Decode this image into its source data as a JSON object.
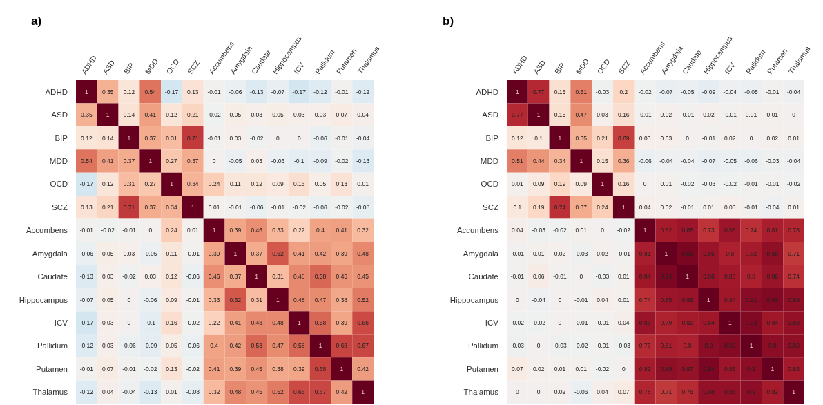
{
  "chart_data": [
    {
      "type": "heatmap",
      "title": "a)",
      "data_labels": true,
      "categories": [
        "ADHD",
        "ASD",
        "BIP",
        "MDD",
        "OCD",
        "SCZ",
        "Accumbens",
        "Amygdala",
        "Caudate",
        "Hippocampus",
        "ICV",
        "Pallidum",
        "Putamen",
        "Thalamus"
      ],
      "y_categories": [
        "ADHD",
        "ASD",
        "BIP",
        "MDD",
        "OCD",
        "SCZ",
        "Accumbens",
        "Amygdala",
        "Caudate",
        "Hippocampus",
        "ICV",
        "Pallidum",
        "Putamen",
        "Thalamus"
      ],
      "cells": [
        [
          1,
          0.35,
          0.12,
          0.54,
          -0.17,
          0.13,
          -0.01,
          -0.06,
          -0.13,
          -0.07,
          -0.17,
          -0.12,
          -0.01,
          -0.12
        ],
        [
          0.35,
          1,
          0.14,
          0.41,
          0.12,
          0.21,
          -0.02,
          0.05,
          0.03,
          0.05,
          0.03,
          0.03,
          0.07,
          0.04
        ],
        [
          0.12,
          0.14,
          1,
          0.37,
          0.31,
          0.71,
          -0.01,
          0.03,
          -0.02,
          0,
          0,
          -0.06,
          -0.01,
          -0.04
        ],
        [
          0.54,
          0.41,
          0.37,
          1,
          0.27,
          0.37,
          0,
          -0.05,
          0.03,
          -0.06,
          -0.1,
          -0.09,
          -0.02,
          -0.13
        ],
        [
          -0.17,
          0.12,
          0.31,
          0.27,
          1,
          0.34,
          0.24,
          0.11,
          0.12,
          0.09,
          0.16,
          0.05,
          0.13,
          0.01
        ],
        [
          0.13,
          0.21,
          0.71,
          0.37,
          0.34,
          1,
          0.01,
          -0.01,
          -0.06,
          -0.01,
          -0.02,
          -0.06,
          -0.02,
          -0.08
        ],
        [
          -0.01,
          -0.02,
          -0.01,
          0,
          0.24,
          0.01,
          1,
          0.39,
          0.46,
          0.33,
          0.22,
          0.4,
          0.41,
          0.32
        ],
        [
          -0.06,
          0.05,
          0.03,
          -0.05,
          0.11,
          -0.01,
          0.39,
          1,
          0.37,
          0.62,
          0.41,
          0.42,
          0.39,
          0.48
        ],
        [
          -0.13,
          0.03,
          -0.02,
          0.03,
          0.12,
          -0.06,
          0.46,
          0.37,
          1,
          0.31,
          0.48,
          0.58,
          0.45,
          0.45
        ],
        [
          -0.07,
          0.05,
          0,
          -0.06,
          0.09,
          -0.01,
          0.33,
          0.62,
          0.31,
          1,
          0.48,
          0.47,
          0.38,
          0.52
        ],
        [
          -0.17,
          0.03,
          0,
          -0.1,
          0.16,
          -0.02,
          0.22,
          0.41,
          0.48,
          0.48,
          1,
          0.58,
          0.39,
          0.66
        ],
        [
          -0.12,
          0.03,
          -0.06,
          -0.09,
          0.05,
          -0.06,
          0.4,
          0.42,
          0.58,
          0.47,
          0.58,
          1,
          0.68,
          0.67
        ],
        [
          -0.01,
          0.07,
          -0.01,
          -0.02,
          0.13,
          -0.02,
          0.41,
          0.39,
          0.45,
          0.38,
          0.39,
          0.68,
          1,
          0.42
        ],
        [
          -0.12,
          0.04,
          -0.04,
          -0.13,
          0.01,
          -0.08,
          0.32,
          0.48,
          0.45,
          0.52,
          0.66,
          0.67,
          0.42,
          1
        ]
      ]
    },
    {
      "type": "heatmap",
      "title": "b)",
      "data_labels": true,
      "categories": [
        "ADHD",
        "ASD",
        "BIP",
        "MDD",
        "OCD",
        "SCZ",
        "Accumbens",
        "Amygdala",
        "Caudate",
        "Hippocampus",
        "ICV",
        "Pallidum",
        "Putamen",
        "Thalamus"
      ],
      "y_categories": [
        "ADHD",
        "ASD",
        "BIP",
        "MDD",
        "OCD",
        "SCZ",
        "Accumbens",
        "Amygdala",
        "Caudate",
        "Hippocampus",
        "ICV",
        "Pallidum",
        "Putamen",
        "Thalamus"
      ],
      "cells": [
        [
          1,
          0.77,
          0.15,
          0.51,
          -0.03,
          0.2,
          -0.02,
          -0.07,
          -0.05,
          -0.09,
          -0.04,
          -0.05,
          -0.01,
          -0.04
        ],
        [
          0.77,
          1,
          0.15,
          0.47,
          0.03,
          0.16,
          -0.01,
          0.02,
          -0.01,
          0.02,
          -0.01,
          0.01,
          0.01,
          0
        ],
        [
          0.12,
          0.1,
          1,
          0.35,
          0.21,
          0.69,
          0.03,
          0.03,
          0,
          -0.01,
          0.02,
          0,
          0.02,
          0.01
        ],
        [
          0.51,
          0.44,
          0.34,
          1,
          0.15,
          0.36,
          -0.06,
          -0.04,
          -0.04,
          -0.07,
          -0.05,
          -0.06,
          -0.03,
          -0.04
        ],
        [
          0.01,
          0.09,
          0.19,
          0.09,
          1,
          0.16,
          0,
          0.01,
          -0.02,
          -0.03,
          -0.02,
          -0.01,
          -0.01,
          -0.02
        ],
        [
          0.1,
          0.19,
          0.74,
          0.37,
          0.24,
          1,
          0.04,
          0.02,
          -0.01,
          0.01,
          0.03,
          -0.01,
          -0.04,
          0.01
        ],
        [
          0.04,
          -0.03,
          -0.02,
          0.01,
          0,
          -0.02,
          1,
          0.82,
          0.85,
          0.73,
          0.85,
          0.74,
          0.81,
          0.78
        ],
        [
          -0.01,
          0.01,
          0.02,
          -0.03,
          0.02,
          -0.01,
          0.81,
          1,
          0.95,
          0.86,
          0.8,
          0.82,
          0.89,
          0.71
        ],
        [
          -0.01,
          0.06,
          -0.01,
          0,
          -0.03,
          0.01,
          0.84,
          0.94,
          1,
          0.86,
          0.83,
          0.8,
          0.86,
          0.74
        ],
        [
          0,
          -0.04,
          0,
          -0.01,
          0.04,
          0.01,
          0.74,
          0.85,
          0.86,
          1,
          0.84,
          0.91,
          0.93,
          0.89
        ],
        [
          -0.02,
          -0.02,
          0,
          -0.01,
          -0.01,
          0.04,
          0.86,
          0.79,
          0.82,
          0.84,
          1,
          0.93,
          0.84,
          0.88
        ],
        [
          -0.03,
          0,
          -0.03,
          -0.02,
          -0.01,
          -0.03,
          0.76,
          0.81,
          0.8,
          0.9,
          0.92,
          1,
          0.9,
          0.89
        ],
        [
          0.07,
          0.02,
          0.01,
          0.01,
          -0.02,
          0,
          0.82,
          0.89,
          0.87,
          0.94,
          0.85,
          0.9,
          1,
          0.83
        ],
        [
          0,
          0,
          0.02,
          -0.06,
          0.04,
          0.07,
          0.78,
          0.71,
          0.76,
          0.88,
          0.88,
          0.9,
          0.82,
          1
        ]
      ]
    }
  ]
}
